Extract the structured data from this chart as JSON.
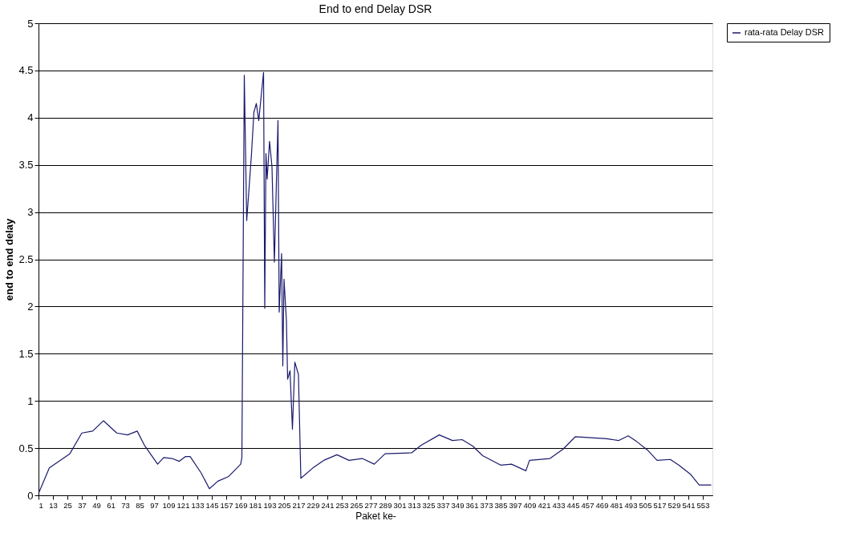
{
  "chart_data": {
    "type": "line",
    "title": "End to end Delay DSR",
    "xlabel": "Paket ke-",
    "ylabel": "end to end delay",
    "x": [
      1,
      10,
      27,
      37,
      46,
      55,
      66,
      75,
      83,
      89,
      100,
      105,
      112,
      118,
      123,
      127,
      136,
      143,
      150,
      159,
      169,
      170,
      172,
      174,
      176,
      178,
      180,
      182,
      184,
      188,
      189,
      190,
      191,
      193,
      195,
      197,
      200,
      201,
      203,
      204,
      205,
      207,
      208,
      210,
      212,
      214,
      217,
      219,
      229,
      238,
      249,
      259,
      270,
      280,
      289,
      311,
      319,
      334,
      345,
      353,
      362,
      370,
      385,
      394,
      406,
      409,
      426,
      437,
      447,
      473,
      483,
      491,
      498,
      507,
      515,
      526,
      533,
      543,
      550,
      560
    ],
    "series": [
      {
        "name": "rata-rata Delay DSR",
        "color": "#1a1a6e",
        "values": [
          0.02,
          0.29,
          0.44,
          0.66,
          0.68,
          0.79,
          0.66,
          0.64,
          0.68,
          0.53,
          0.33,
          0.4,
          0.39,
          0.36,
          0.41,
          0.41,
          0.24,
          0.07,
          0.15,
          0.2,
          0.33,
          0.4,
          4.45,
          2.91,
          3.26,
          3.62,
          4.06,
          4.15,
          3.97,
          4.48,
          1.98,
          3.62,
          3.35,
          3.75,
          3.48,
          2.47,
          3.97,
          1.94,
          2.56,
          1.37,
          2.29,
          1.85,
          1.23,
          1.32,
          0.7,
          1.41,
          1.28,
          0.18,
          0.29,
          0.37,
          0.43,
          0.37,
          0.39,
          0.33,
          0.44,
          0.45,
          0.53,
          0.64,
          0.58,
          0.59,
          0.52,
          0.42,
          0.32,
          0.33,
          0.26,
          0.37,
          0.39,
          0.49,
          0.62,
          0.6,
          0.58,
          0.63,
          0.57,
          0.48,
          0.37,
          0.38,
          0.32,
          0.22,
          0.11,
          0.11
        ]
      }
    ],
    "xlim": [
      1,
      561
    ],
    "xticks": [
      1,
      13,
      25,
      37,
      49,
      61,
      73,
      85,
      97,
      109,
      121,
      133,
      145,
      157,
      169,
      181,
      193,
      205,
      217,
      229,
      241,
      253,
      265,
      277,
      289,
      301,
      313,
      325,
      337,
      349,
      361,
      373,
      385,
      397,
      409,
      421,
      433,
      445,
      457,
      469,
      481,
      493,
      505,
      517,
      529,
      541,
      553
    ],
    "ylim": [
      0,
      5
    ],
    "yticks": [
      0,
      0.5,
      1,
      1.5,
      2,
      2.5,
      3,
      3.5,
      4,
      4.5,
      5
    ],
    "grid": "y",
    "legend": "right",
    "marker": "none",
    "line_style": "solid"
  }
}
